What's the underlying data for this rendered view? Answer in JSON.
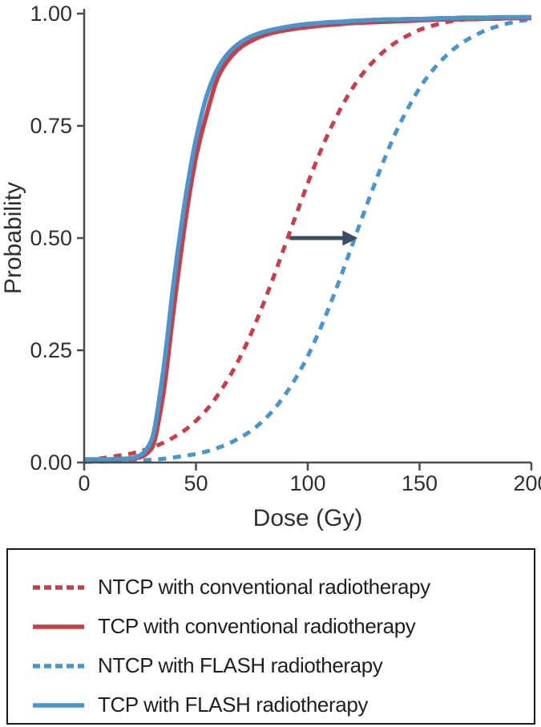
{
  "figure": {
    "background": "#ffffff",
    "axis_color": "#4b4b4b",
    "text_color": "#2f2f2f",
    "legend_border_color": "#1a1a1a"
  },
  "chart_data": {
    "type": "line",
    "title": "",
    "xlabel": "Dose (Gy)",
    "ylabel": "Probability",
    "xlim": [
      0,
      200
    ],
    "ylim": [
      0,
      1
    ],
    "grid": false,
    "legend_position": "bottom-boxed",
    "xticks": [
      {
        "value": 0,
        "label": "0"
      },
      {
        "value": 50,
        "label": "50"
      },
      {
        "value": 100,
        "label": "100"
      },
      {
        "value": 150,
        "label": "150"
      },
      {
        "value": 200,
        "label": "200"
      }
    ],
    "yticks": [
      {
        "value": 0,
        "label": "0.00"
      },
      {
        "value": 0.25,
        "label": "0.25"
      },
      {
        "value": 0.5,
        "label": "0.50"
      },
      {
        "value": 0.75,
        "label": "0.75"
      },
      {
        "value": 1,
        "label": "1.00"
      }
    ],
    "x": [
      0,
      5,
      10,
      15,
      20,
      25,
      30,
      35,
      40,
      45,
      50,
      55,
      60,
      65,
      70,
      75,
      80,
      85,
      90,
      95,
      100,
      105,
      110,
      115,
      120,
      125,
      130,
      135,
      140,
      145,
      150,
      155,
      160,
      165,
      170,
      175,
      180,
      185,
      190,
      195,
      200
    ],
    "series": [
      {
        "name": "NTCP with conventional radiotherapy",
        "color": "#c3414d",
        "style": "dashed",
        "d50_gy": 91,
        "values": [
          0.006,
          0.008,
          0.011,
          0.015,
          0.019,
          0.025,
          0.033,
          0.043,
          0.056,
          0.072,
          0.093,
          0.119,
          0.152,
          0.191,
          0.237,
          0.291,
          0.352,
          0.417,
          0.486,
          0.555,
          0.622,
          0.685,
          0.742,
          0.791,
          0.834,
          0.869,
          0.897,
          0.92,
          0.938,
          0.952,
          0.964,
          0.972,
          0.979,
          0.984,
          0.987,
          0.989,
          0.99,
          0.991,
          0.992,
          0.992,
          0.993
        ]
      },
      {
        "name": "TCP with conventional radiotherapy",
        "color": "#c3414d",
        "style": "solid",
        "d50_gy": 44,
        "values": [
          0.006,
          0.006,
          0.006,
          0.007,
          0.008,
          0.012,
          0.03,
          0.14,
          0.34,
          0.53,
          0.68,
          0.78,
          0.86,
          0.9,
          0.925,
          0.94,
          0.951,
          0.958,
          0.963,
          0.967,
          0.97,
          0.973,
          0.975,
          0.977,
          0.979,
          0.98,
          0.981,
          0.982,
          0.983,
          0.984,
          0.985,
          0.986,
          0.987,
          0.987,
          0.988,
          0.988,
          0.989,
          0.989,
          0.99,
          0.99,
          0.99
        ]
      },
      {
        "name": "NTCP with FLASH radiotherapy",
        "color": "#4d94c8",
        "style": "dashed",
        "d50_gy": 121,
        "values": [
          0.001,
          0.002,
          0.002,
          0.003,
          0.004,
          0.005,
          0.006,
          0.008,
          0.011,
          0.015,
          0.019,
          0.025,
          0.033,
          0.043,
          0.056,
          0.072,
          0.093,
          0.119,
          0.152,
          0.191,
          0.237,
          0.291,
          0.352,
          0.417,
          0.486,
          0.555,
          0.622,
          0.685,
          0.742,
          0.791,
          0.834,
          0.869,
          0.897,
          0.92,
          0.938,
          0.952,
          0.964,
          0.972,
          0.979,
          0.984,
          0.987
        ]
      },
      {
        "name": "TCP with FLASH radiotherapy",
        "color": "#4d94c8",
        "style": "solid",
        "d50_gy": 42,
        "values": [
          0.007,
          0.007,
          0.007,
          0.008,
          0.009,
          0.016,
          0.048,
          0.19,
          0.4,
          0.58,
          0.72,
          0.82,
          0.88,
          0.915,
          0.936,
          0.95,
          0.959,
          0.965,
          0.97,
          0.974,
          0.977,
          0.979,
          0.981,
          0.982,
          0.984,
          0.985,
          0.986,
          0.987,
          0.987,
          0.988,
          0.988,
          0.989,
          0.99,
          0.99,
          0.991,
          0.991,
          0.991,
          0.992,
          0.992,
          0.992,
          0.992
        ]
      }
    ],
    "annotation_arrow": {
      "at_probability": 0.5,
      "from_dose": 92,
      "to_dose": 122,
      "color": "#3c4c63",
      "meaning": "shift of NTCP curve from conventional to FLASH radiotherapy"
    }
  }
}
